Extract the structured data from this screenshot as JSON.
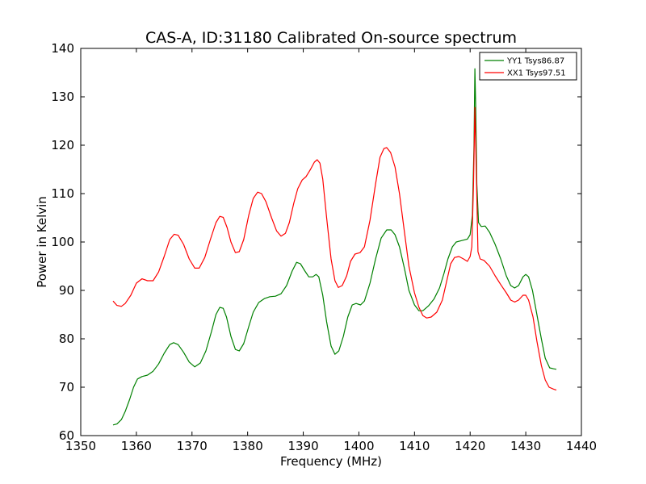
{
  "chart_data": {
    "type": "line",
    "title": "CAS-A, ID:31180 Calibrated On-source spectrum",
    "xlabel": "Frequency (MHz)",
    "ylabel": "Power in Kelvin",
    "xlim": [
      1350,
      1440
    ],
    "ylim": [
      60,
      140
    ],
    "xticks": [
      1350,
      1360,
      1370,
      1380,
      1390,
      1400,
      1410,
      1420,
      1430,
      1440
    ],
    "yticks": [
      60,
      70,
      80,
      90,
      100,
      110,
      120,
      130,
      140
    ],
    "grid": false,
    "legend_position": "top-right",
    "series": [
      {
        "name": "YY1 Tsys86.87",
        "color": "#008000",
        "points": [
          [
            1355.8,
            62.2
          ],
          [
            1356.5,
            62.4
          ],
          [
            1357.3,
            63.3
          ],
          [
            1358.0,
            65.0
          ],
          [
            1358.8,
            67.5
          ],
          [
            1359.5,
            70.0
          ],
          [
            1360.2,
            71.7
          ],
          [
            1361.0,
            72.2
          ],
          [
            1362.0,
            72.5
          ],
          [
            1363.0,
            73.3
          ],
          [
            1364.0,
            74.8
          ],
          [
            1365.0,
            77.0
          ],
          [
            1366.0,
            78.8
          ],
          [
            1366.7,
            79.2
          ],
          [
            1367.5,
            78.8
          ],
          [
            1368.5,
            77.2
          ],
          [
            1369.5,
            75.2
          ],
          [
            1370.5,
            74.2
          ],
          [
            1371.5,
            75.0
          ],
          [
            1372.5,
            77.5
          ],
          [
            1373.5,
            81.5
          ],
          [
            1374.3,
            85.0
          ],
          [
            1375.0,
            86.5
          ],
          [
            1375.6,
            86.3
          ],
          [
            1376.2,
            84.5
          ],
          [
            1377.0,
            80.5
          ],
          [
            1377.8,
            77.8
          ],
          [
            1378.5,
            77.5
          ],
          [
            1379.3,
            79.0
          ],
          [
            1380.2,
            82.5
          ],
          [
            1381.0,
            85.5
          ],
          [
            1382.0,
            87.5
          ],
          [
            1383.0,
            88.3
          ],
          [
            1384.0,
            88.7
          ],
          [
            1385.0,
            88.8
          ],
          [
            1386.0,
            89.3
          ],
          [
            1387.0,
            91.0
          ],
          [
            1388.0,
            94.0
          ],
          [
            1388.8,
            95.8
          ],
          [
            1389.5,
            95.5
          ],
          [
            1390.3,
            94.0
          ],
          [
            1391.0,
            92.8
          ],
          [
            1391.7,
            92.8
          ],
          [
            1392.3,
            93.3
          ],
          [
            1392.8,
            92.8
          ],
          [
            1393.5,
            89.0
          ],
          [
            1394.2,
            83.5
          ],
          [
            1395.0,
            78.5
          ],
          [
            1395.7,
            76.8
          ],
          [
            1396.4,
            77.5
          ],
          [
            1397.2,
            80.5
          ],
          [
            1398.0,
            84.5
          ],
          [
            1398.8,
            87.0
          ],
          [
            1399.5,
            87.3
          ],
          [
            1400.3,
            87.0
          ],
          [
            1401.0,
            87.8
          ],
          [
            1402.0,
            91.5
          ],
          [
            1403.0,
            96.5
          ],
          [
            1404.0,
            100.8
          ],
          [
            1405.0,
            102.5
          ],
          [
            1405.8,
            102.5
          ],
          [
            1406.5,
            101.5
          ],
          [
            1407.3,
            99.0
          ],
          [
            1408.2,
            94.5
          ],
          [
            1409.0,
            90.0
          ],
          [
            1410.0,
            87.0
          ],
          [
            1410.8,
            85.8
          ],
          [
            1411.5,
            85.8
          ],
          [
            1412.5,
            86.8
          ],
          [
            1413.5,
            88.2
          ],
          [
            1414.5,
            90.5
          ],
          [
            1415.3,
            93.5
          ],
          [
            1416.0,
            96.5
          ],
          [
            1416.8,
            99.0
          ],
          [
            1417.5,
            100.0
          ],
          [
            1418.5,
            100.3
          ],
          [
            1419.5,
            100.6
          ],
          [
            1420.0,
            101.5
          ],
          [
            1420.4,
            105.5
          ],
          [
            1420.7,
            120.0
          ],
          [
            1420.85,
            135.8
          ],
          [
            1421.0,
            128.0
          ],
          [
            1421.2,
            112.0
          ],
          [
            1421.5,
            104.0
          ],
          [
            1422.0,
            103.2
          ],
          [
            1422.7,
            103.3
          ],
          [
            1423.5,
            102.0
          ],
          [
            1424.5,
            99.5
          ],
          [
            1425.5,
            96.5
          ],
          [
            1426.5,
            93.0
          ],
          [
            1427.3,
            91.0
          ],
          [
            1428.0,
            90.5
          ],
          [
            1428.7,
            91.0
          ],
          [
            1429.5,
            92.8
          ],
          [
            1430.0,
            93.3
          ],
          [
            1430.5,
            92.8
          ],
          [
            1431.2,
            90.0
          ],
          [
            1432.0,
            85.0
          ],
          [
            1432.8,
            80.0
          ],
          [
            1433.5,
            76.0
          ],
          [
            1434.3,
            74.0
          ],
          [
            1435.0,
            73.8
          ],
          [
            1435.5,
            73.7
          ]
        ]
      },
      {
        "name": "XX1 Tsys97.51",
        "color": "#ff0000",
        "points": [
          [
            1355.8,
            87.8
          ],
          [
            1356.5,
            86.9
          ],
          [
            1357.3,
            86.7
          ],
          [
            1358.0,
            87.3
          ],
          [
            1359.0,
            89.0
          ],
          [
            1360.0,
            91.5
          ],
          [
            1361.0,
            92.4
          ],
          [
            1362.0,
            92.0
          ],
          [
            1363.0,
            92.0
          ],
          [
            1364.0,
            93.8
          ],
          [
            1365.0,
            97.0
          ],
          [
            1366.0,
            100.5
          ],
          [
            1366.8,
            101.6
          ],
          [
            1367.5,
            101.4
          ],
          [
            1368.5,
            99.5
          ],
          [
            1369.5,
            96.5
          ],
          [
            1370.5,
            94.6
          ],
          [
            1371.3,
            94.6
          ],
          [
            1372.3,
            96.8
          ],
          [
            1373.3,
            100.5
          ],
          [
            1374.3,
            104.0
          ],
          [
            1375.0,
            105.3
          ],
          [
            1375.6,
            105.1
          ],
          [
            1376.3,
            103.0
          ],
          [
            1377.0,
            100.0
          ],
          [
            1377.8,
            97.8
          ],
          [
            1378.5,
            98.0
          ],
          [
            1379.3,
            100.5
          ],
          [
            1380.2,
            105.5
          ],
          [
            1381.0,
            109.0
          ],
          [
            1381.8,
            110.3
          ],
          [
            1382.5,
            110.0
          ],
          [
            1383.3,
            108.3
          ],
          [
            1384.3,
            105.0
          ],
          [
            1385.2,
            102.3
          ],
          [
            1386.0,
            101.2
          ],
          [
            1386.8,
            101.8
          ],
          [
            1387.5,
            104.0
          ],
          [
            1388.3,
            108.0
          ],
          [
            1389.0,
            111.0
          ],
          [
            1389.8,
            112.8
          ],
          [
            1390.5,
            113.5
          ],
          [
            1391.3,
            115.0
          ],
          [
            1392.0,
            116.5
          ],
          [
            1392.5,
            117.0
          ],
          [
            1393.0,
            116.3
          ],
          [
            1393.5,
            113.0
          ],
          [
            1394.2,
            105.0
          ],
          [
            1395.0,
            96.5
          ],
          [
            1395.7,
            92.0
          ],
          [
            1396.3,
            90.6
          ],
          [
            1397.0,
            91.0
          ],
          [
            1397.8,
            93.0
          ],
          [
            1398.5,
            96.0
          ],
          [
            1399.3,
            97.5
          ],
          [
            1400.2,
            97.8
          ],
          [
            1401.0,
            99.0
          ],
          [
            1402.0,
            104.5
          ],
          [
            1403.0,
            112.0
          ],
          [
            1403.8,
            117.5
          ],
          [
            1404.5,
            119.3
          ],
          [
            1405.0,
            119.5
          ],
          [
            1405.7,
            118.5
          ],
          [
            1406.5,
            115.5
          ],
          [
            1407.3,
            110.0
          ],
          [
            1408.2,
            102.0
          ],
          [
            1409.0,
            95.0
          ],
          [
            1410.0,
            89.5
          ],
          [
            1410.8,
            86.5
          ],
          [
            1411.5,
            84.8
          ],
          [
            1412.2,
            84.3
          ],
          [
            1413.0,
            84.5
          ],
          [
            1414.0,
            85.5
          ],
          [
            1415.0,
            88.0
          ],
          [
            1415.8,
            92.0
          ],
          [
            1416.5,
            95.5
          ],
          [
            1417.2,
            96.8
          ],
          [
            1418.0,
            97.0
          ],
          [
            1418.8,
            96.5
          ],
          [
            1419.5,
            96.0
          ],
          [
            1420.0,
            97.0
          ],
          [
            1420.3,
            99.0
          ],
          [
            1420.6,
            112.0
          ],
          [
            1420.85,
            127.8
          ],
          [
            1421.1,
            115.0
          ],
          [
            1421.4,
            98.0
          ],
          [
            1421.8,
            96.5
          ],
          [
            1422.5,
            96.2
          ],
          [
            1423.5,
            95.0
          ],
          [
            1424.5,
            93.0
          ],
          [
            1425.5,
            91.2
          ],
          [
            1426.5,
            89.5
          ],
          [
            1427.3,
            88.0
          ],
          [
            1428.0,
            87.6
          ],
          [
            1428.7,
            88.0
          ],
          [
            1429.5,
            89.0
          ],
          [
            1430.0,
            89.0
          ],
          [
            1430.5,
            88.0
          ],
          [
            1431.3,
            84.5
          ],
          [
            1432.0,
            79.5
          ],
          [
            1432.8,
            74.5
          ],
          [
            1433.5,
            71.5
          ],
          [
            1434.2,
            70.0
          ],
          [
            1435.0,
            69.6
          ],
          [
            1435.5,
            69.4
          ]
        ]
      }
    ]
  }
}
